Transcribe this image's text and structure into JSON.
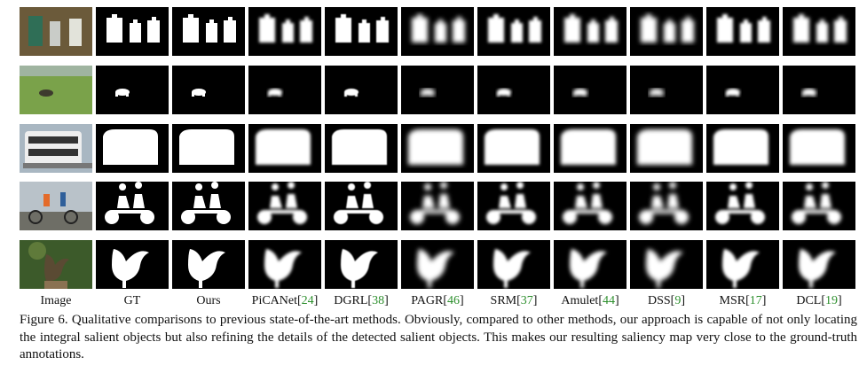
{
  "columns": [
    {
      "name": "Image",
      "ref": ""
    },
    {
      "name": "GT",
      "ref": ""
    },
    {
      "name": "Ours",
      "ref": ""
    },
    {
      "name": "PiCANet",
      "ref": "24"
    },
    {
      "name": "DGRL",
      "ref": "38"
    },
    {
      "name": "PAGR",
      "ref": "46"
    },
    {
      "name": "SRM",
      "ref": "37"
    },
    {
      "name": "Amulet",
      "ref": "44"
    },
    {
      "name": "DSS",
      "ref": "9"
    },
    {
      "name": "MSR",
      "ref": "17"
    },
    {
      "name": "DCL",
      "ref": "19"
    }
  ],
  "rows": [
    "bottles",
    "grass-animal",
    "bus",
    "tandem-bicycle",
    "bird"
  ],
  "caption": "Figure 6. Qualitative comparisons to previous state-of-the-art methods. Obviously, compared to other methods, our approach is capable of not only locating the integral salient objects but also refining the details of the detected salient objects. This makes our resulting saliency map very close to the ground-truth annotations.",
  "colors": {
    "reference_link": "#2d8f2d",
    "mask_fg": "#ffffff",
    "mask_bg": "#000000"
  }
}
